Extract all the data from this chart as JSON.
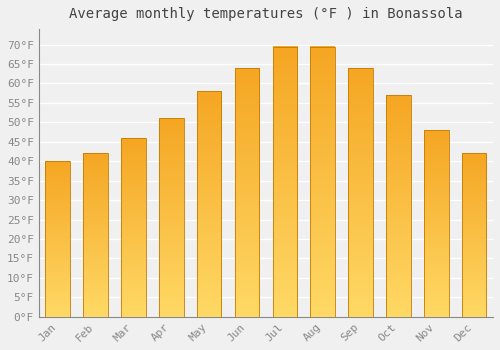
{
  "title": "Average monthly temperatures (°F ) in Bonassola",
  "months": [
    "Jan",
    "Feb",
    "Mar",
    "Apr",
    "May",
    "Jun",
    "Jul",
    "Aug",
    "Sep",
    "Oct",
    "Nov",
    "Dec"
  ],
  "values": [
    40,
    42,
    46,
    51,
    58,
    64,
    69.5,
    69.5,
    64,
    57,
    48,
    42
  ],
  "bar_color_top": "#F5A623",
  "bar_color_bottom": "#FFD966",
  "bar_edge_color": "#C47A00",
  "ylim": [
    0,
    74
  ],
  "yticks": [
    0,
    5,
    10,
    15,
    20,
    25,
    30,
    35,
    40,
    45,
    50,
    55,
    60,
    65,
    70
  ],
  "background_color": "#f0f0f0",
  "grid_color": "#ffffff",
  "title_fontsize": 10,
  "tick_fontsize": 8,
  "font_family": "monospace"
}
